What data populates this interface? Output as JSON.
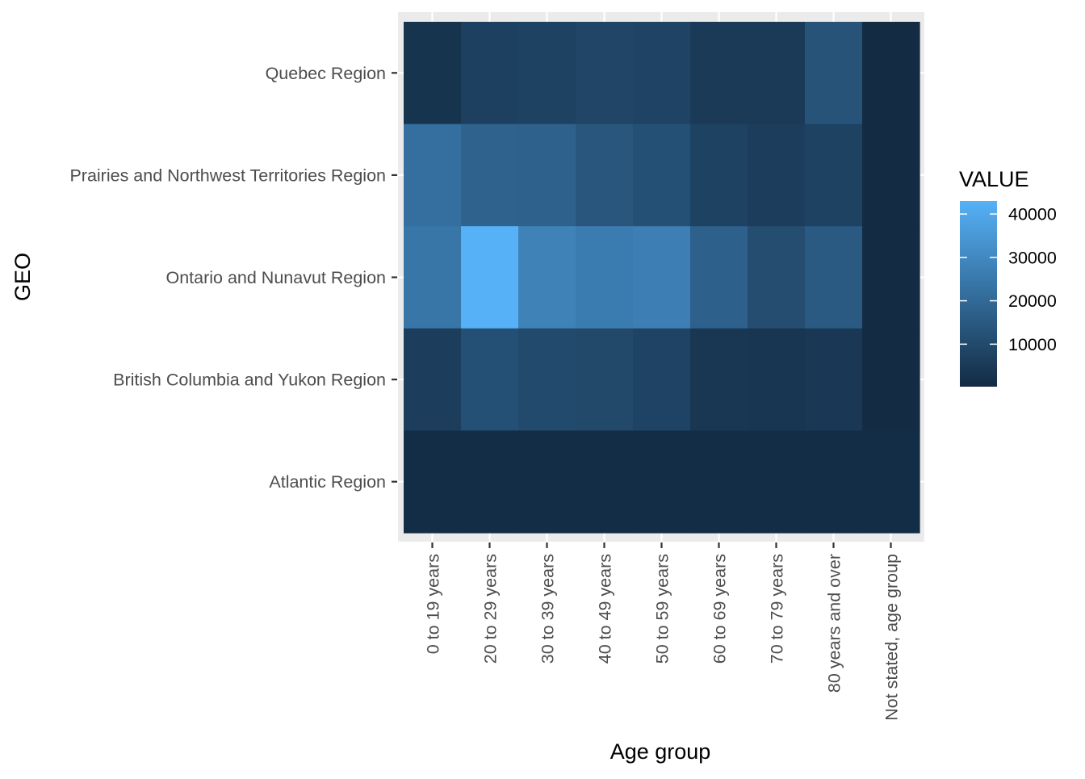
{
  "chart_data": {
    "type": "heatmap",
    "title": "",
    "xlabel": "Age group",
    "ylabel": "GEO",
    "x_categories": [
      "0 to 19 years",
      "20 to 29 years",
      "30 to 39 years",
      "40 to 49 years",
      "50 to 59 years",
      "60 to 69 years",
      "70 to 79 years",
      "80 years and over",
      "Not stated, age group"
    ],
    "y_categories": [
      "Quebec Region",
      "Prairies and Northwest Territories Region",
      "Ontario and Nunavut Region",
      "British Columbia and Yukon Region",
      "Atlantic Region"
    ],
    "values": [
      [
        3000,
        7000,
        7500,
        8500,
        8000,
        5000,
        5000,
        13000,
        200
      ],
      [
        22000,
        18000,
        17500,
        14000,
        12000,
        7500,
        6000,
        7500,
        200
      ],
      [
        24000,
        43000,
        28000,
        26000,
        27000,
        17000,
        11000,
        15000,
        200
      ],
      [
        6000,
        12000,
        10000,
        9500,
        8000,
        4000,
        3500,
        4500,
        200
      ],
      [
        800,
        800,
        800,
        800,
        800,
        800,
        800,
        800,
        800
      ]
    ],
    "legend": {
      "title": "VALUE",
      "position": "right",
      "breaks": [
        10000,
        20000,
        30000,
        40000
      ],
      "range": [
        200,
        43000
      ],
      "low_color": "#132B43",
      "high_color": "#56B1F7"
    },
    "panel_background": "#EBEBEB",
    "grid": true
  }
}
